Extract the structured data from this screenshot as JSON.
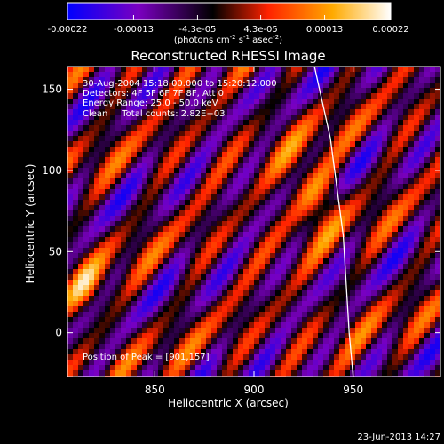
{
  "chart_data": {
    "type": "heatmap",
    "title": "Reconstructed RHESSI Image",
    "colorbar": {
      "ticks": [
        {
          "label": "-0.00022",
          "value": -0.00022
        },
        {
          "label": "-0.00013",
          "value": -0.00013
        },
        {
          "label": "-4.3e-05",
          "value": -4.3e-05
        },
        {
          "label": "4.3e-05",
          "value": 4.3e-05
        },
        {
          "label": "0.00013",
          "value": 0.00013
        },
        {
          "label": "0.00022",
          "value": 0.00022
        }
      ],
      "range": [
        -0.00022,
        0.00022
      ],
      "unit_parts": {
        "pre": "(photons cm",
        "exp1": "-2",
        "mid1": " s",
        "exp2": "-1",
        "mid2": " asec",
        "exp3": "-2",
        "post": ")"
      },
      "colors": [
        "#0000ff",
        "#7a00c0",
        "#000000",
        "#ff2200",
        "#ffaa00",
        "#ffffff"
      ]
    },
    "annotations": {
      "time": "30-Aug-2004 15:18:00.000 to 15:20:12.000",
      "detectors": "Detectors: 4F 5F 6F 7F 8F, Att 0",
      "energy": "Energy Range: 25.0 - 50.0 keV",
      "clean": "Clean     Total counts: 2.82E+03",
      "peak": "Position of Peak = [901,157]"
    },
    "xlabel": "Heliocentric X (arcsec)",
    "ylabel": "Heliocentric Y (arcsec)",
    "xlim": [
      806,
      994
    ],
    "ylim": [
      -27,
      164
    ],
    "xticks": [
      850,
      900,
      950
    ],
    "yticks": [
      0,
      50,
      100,
      150
    ],
    "limb_x": [
      930.5,
      938.5,
      945,
      948,
      950
    ],
    "limb_y": [
      164,
      120,
      60,
      0,
      -27
    ]
  },
  "footer": {
    "timestamp": "23-Jun-2013 14:27"
  }
}
